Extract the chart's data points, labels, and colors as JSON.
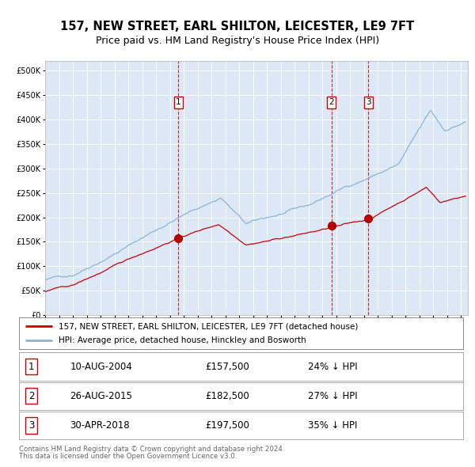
{
  "title": "157, NEW STREET, EARL SHILTON, LEICESTER, LE9 7FT",
  "subtitle": "Price paid vs. HM Land Registry's House Price Index (HPI)",
  "legend_property": "157, NEW STREET, EARL SHILTON, LEICESTER, LE9 7FT (detached house)",
  "legend_hpi": "HPI: Average price, detached house, Hinckley and Bosworth",
  "footer1": "Contains HM Land Registry data © Crown copyright and database right 2024.",
  "footer2": "This data is licensed under the Open Government Licence v3.0.",
  "sales": [
    {
      "num": 1,
      "date": "10-AUG-2004",
      "date_val": 2004.62,
      "price": 157500,
      "pct": "24% ↓ HPI"
    },
    {
      "num": 2,
      "date": "26-AUG-2015",
      "date_val": 2015.65,
      "price": 182500,
      "pct": "27% ↓ HPI"
    },
    {
      "num": 3,
      "date": "30-APR-2018",
      "date_val": 2018.33,
      "price": 197500,
      "pct": "35% ↓ HPI"
    }
  ],
  "hpi_color": "#8ab4d8",
  "property_color": "#cc0000",
  "dashed_line_color": "#cc0000",
  "plot_bg": "#dce8f5",
  "grid_color": "#ffffff",
  "ylim": [
    0,
    520000
  ],
  "xlim_start": 1995.0,
  "xlim_end": 2025.5
}
